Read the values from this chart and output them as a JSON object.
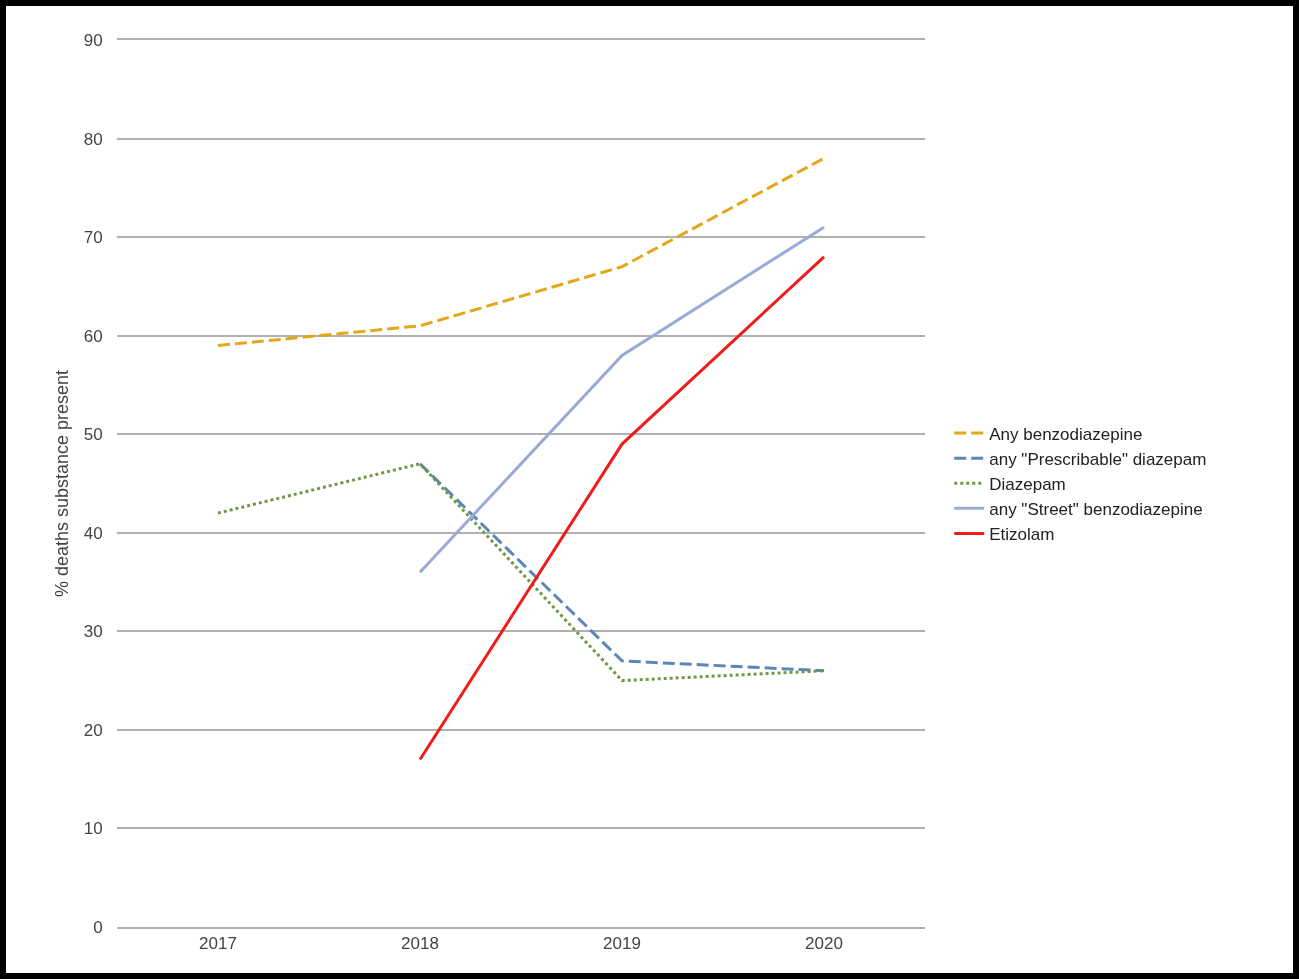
{
  "chart_data": {
    "type": "line",
    "ylabel": "% deaths substance present",
    "categories": [
      "2017",
      "2018",
      "2019",
      "2020"
    ],
    "series": [
      {
        "name": "Any benzodiazepine",
        "color": "#e3a71c",
        "line_style": "dashed",
        "values": [
          59,
          61,
          67,
          78
        ]
      },
      {
        "name": "any \"Prescribable\" diazepam",
        "color": "#5a86b8",
        "line_style": "dashed",
        "values": [
          null,
          47,
          27,
          26
        ]
      },
      {
        "name": "Diazepam",
        "color": "#6e9a45",
        "line_style": "dotted",
        "values": [
          42,
          47,
          25,
          26
        ]
      },
      {
        "name": "any \"Street\" benzodiazepine",
        "color": "#9aaad6",
        "line_style": "solid",
        "values": [
          null,
          36,
          58,
          71
        ]
      },
      {
        "name": "Etizolam",
        "color": "#ee1c1c",
        "line_style": "solid",
        "values": [
          null,
          17,
          49,
          68
        ]
      }
    ],
    "ylim": [
      0,
      90
    ],
    "yticks": [
      0,
      10,
      20,
      30,
      40,
      50,
      60,
      70,
      80,
      90
    ],
    "grid": "y",
    "legend": "right",
    "marker": "none"
  }
}
